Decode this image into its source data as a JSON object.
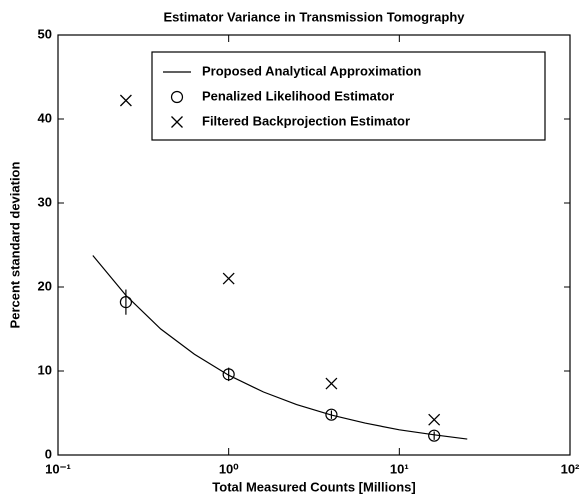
{
  "chart_data": {
    "type": "scatter",
    "title": "Estimator Variance in Transmission Tomography",
    "xlabel": "Total Measured Counts [Millions]",
    "ylabel": "Percent standard deviation",
    "xscale": "log",
    "xlim": [
      0.1,
      100
    ],
    "xticks": [
      {
        "value": 0.1,
        "label": "10⁻¹"
      },
      {
        "value": 1,
        "label": "10⁰"
      },
      {
        "value": 10,
        "label": "10¹"
      },
      {
        "value": 100,
        "label": "10²"
      }
    ],
    "ylim": [
      0,
      50
    ],
    "yticks": [
      0,
      10,
      20,
      30,
      40,
      50
    ],
    "legend": "upper right",
    "series": [
      {
        "name": "Proposed Analytical Approximation",
        "color": "#000000",
        "style": "line",
        "x": [
          0.16,
          0.25,
          0.4,
          0.63,
          1,
          1.6,
          2.5,
          4,
          6.3,
          10,
          16,
          25
        ],
        "values": [
          23.75,
          19,
          15,
          12,
          9.5,
          7.5,
          6,
          4.75,
          3.8,
          3,
          2.4,
          1.9
        ]
      },
      {
        "name": "Penalized Likelihood Estimator",
        "color": "#000000",
        "style": "circle",
        "x": [
          0.25,
          1,
          4,
          16
        ],
        "values": [
          18.2,
          9.6,
          4.8,
          2.3
        ],
        "errors": [
          1.5,
          0.8,
          0.5,
          0.5
        ]
      },
      {
        "name": "Filtered Backprojection Estimator",
        "color": "#000000",
        "style": "x",
        "x": [
          0.25,
          1,
          4,
          16
        ],
        "values": [
          42.2,
          21,
          8.5,
          4.2
        ]
      }
    ]
  }
}
